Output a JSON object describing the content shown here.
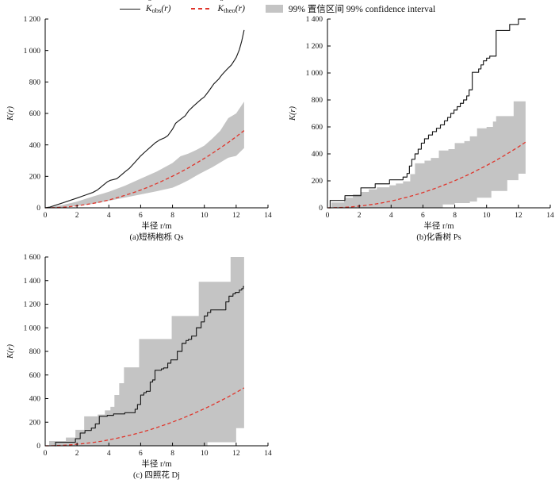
{
  "legend": {
    "k_symbol": "K",
    "hat": "ˆ",
    "obs_sub": "obs",
    "theo_sub": "theo",
    "arg": "(r)",
    "ci_label": "99% 置信区间 99% confidence interval"
  },
  "colors": {
    "obs": "#1a1a1a",
    "theo": "#e0352b",
    "band": "#c4c4c4",
    "axis": "#000000"
  },
  "chart_data": [
    {
      "id": "a",
      "type": "line",
      "caption": "(a)短柄枹栎 Qs",
      "xlabel": "半径 r/m",
      "ylabel": "K(r)",
      "xlim": [
        0,
        14
      ],
      "ylim": [
        0,
        1200
      ],
      "xticks": [
        "0",
        "2",
        "4",
        "6",
        "8",
        "10",
        "12",
        "14"
      ],
      "yticks": [
        "0",
        "200",
        "400",
        "600",
        "800",
        "1 000",
        "1 200"
      ],
      "grid": false,
      "legend_position": "top-outside",
      "obs_style": "line",
      "obs": [
        [
          0,
          0
        ],
        [
          0.3,
          5
        ],
        [
          0.6,
          15
        ],
        [
          1,
          28
        ],
        [
          1.5,
          45
        ],
        [
          2,
          62
        ],
        [
          2.5,
          80
        ],
        [
          3,
          98
        ],
        [
          3.3,
          115
        ],
        [
          3.6,
          140
        ],
        [
          3.9,
          165
        ],
        [
          4.1,
          175
        ],
        [
          4.5,
          185
        ],
        [
          4.8,
          210
        ],
        [
          5,
          228
        ],
        [
          5.3,
          252
        ],
        [
          5.6,
          285
        ],
        [
          6,
          330
        ],
        [
          6.3,
          358
        ],
        [
          6.6,
          385
        ],
        [
          6.9,
          412
        ],
        [
          7.2,
          432
        ],
        [
          7.5,
          445
        ],
        [
          7.7,
          458
        ],
        [
          8,
          500
        ],
        [
          8.2,
          538
        ],
        [
          8.5,
          562
        ],
        [
          8.8,
          585
        ],
        [
          9,
          615
        ],
        [
          9.3,
          645
        ],
        [
          9.6,
          672
        ],
        [
          9.8,
          690
        ],
        [
          10,
          705
        ],
        [
          10.3,
          745
        ],
        [
          10.6,
          788
        ],
        [
          10.9,
          818
        ],
        [
          11.1,
          845
        ],
        [
          11.4,
          878
        ],
        [
          11.7,
          908
        ],
        [
          12,
          955
        ],
        [
          12.2,
          1005
        ],
        [
          12.35,
          1060
        ],
        [
          12.5,
          1130
        ]
      ],
      "theo": [
        [
          0,
          0
        ],
        [
          0.5,
          1
        ],
        [
          1,
          3
        ],
        [
          1.5,
          7
        ],
        [
          2,
          13
        ],
        [
          2.5,
          20
        ],
        [
          3,
          28
        ],
        [
          3.5,
          38
        ],
        [
          4,
          50
        ],
        [
          4.5,
          64
        ],
        [
          5,
          79
        ],
        [
          5.5,
          95
        ],
        [
          6,
          113
        ],
        [
          6.5,
          133
        ],
        [
          7,
          154
        ],
        [
          7.5,
          177
        ],
        [
          8,
          201
        ],
        [
          8.5,
          227
        ],
        [
          9,
          254
        ],
        [
          9.5,
          284
        ],
        [
          10,
          314
        ],
        [
          10.5,
          346
        ],
        [
          11,
          380
        ],
        [
          11.5,
          415
        ],
        [
          12,
          452
        ],
        [
          12.5,
          491
        ]
      ],
      "band": {
        "style": "line",
        "r": [
          0.3,
          1,
          2,
          3,
          4,
          5,
          6,
          7,
          8,
          8.5,
          9,
          9.5,
          10,
          10.5,
          11,
          11.5,
          12,
          12.5
        ],
        "lower": [
          0,
          2,
          12,
          25,
          45,
          65,
          85,
          105,
          128,
          150,
          175,
          205,
          232,
          258,
          288,
          318,
          330,
          380
        ],
        "upper": [
          4,
          16,
          40,
          72,
          102,
          140,
          185,
          230,
          285,
          328,
          345,
          368,
          395,
          440,
          490,
          570,
          600,
          675
        ]
      }
    },
    {
      "id": "b",
      "type": "line",
      "caption": "(b)化香树 Ps",
      "xlabel": "半径 r/m",
      "ylabel": "K(r)",
      "xlim": [
        0,
        14
      ],
      "ylim": [
        0,
        1400
      ],
      "xticks": [
        "0",
        "2",
        "4",
        "6",
        "8",
        "10",
        "12",
        "14"
      ],
      "yticks": [
        "0",
        "200",
        "400",
        "600",
        "800",
        "1 000",
        "1 200",
        "1 400"
      ],
      "grid": false,
      "obs_style": "step",
      "obs": [
        [
          0.12,
          0
        ],
        [
          0.17,
          55
        ],
        [
          1.1,
          90
        ],
        [
          2.1,
          148
        ],
        [
          3.0,
          178
        ],
        [
          3.9,
          208
        ],
        [
          4.75,
          228
        ],
        [
          5.0,
          255
        ],
        [
          5.15,
          310
        ],
        [
          5.3,
          360
        ],
        [
          5.5,
          400
        ],
        [
          5.7,
          435
        ],
        [
          5.9,
          480
        ],
        [
          6.1,
          512
        ],
        [
          6.35,
          540
        ],
        [
          6.6,
          565
        ],
        [
          6.85,
          590
        ],
        [
          7.1,
          615
        ],
        [
          7.35,
          645
        ],
        [
          7.55,
          670
        ],
        [
          7.75,
          700
        ],
        [
          7.95,
          725
        ],
        [
          8.15,
          750
        ],
        [
          8.35,
          775
        ],
        [
          8.55,
          800
        ],
        [
          8.75,
          830
        ],
        [
          8.9,
          875
        ],
        [
          9.1,
          1005
        ],
        [
          9.5,
          1030
        ],
        [
          9.65,
          1060
        ],
        [
          9.8,
          1090
        ],
        [
          10.0,
          1110
        ],
        [
          10.2,
          1125
        ],
        [
          10.6,
          1315
        ],
        [
          11.45,
          1360
        ],
        [
          12.0,
          1400
        ],
        [
          12.45,
          1400
        ]
      ],
      "theo": [
        [
          0,
          0
        ],
        [
          0.5,
          1
        ],
        [
          1,
          3
        ],
        [
          1.5,
          7
        ],
        [
          2,
          13
        ],
        [
          2.5,
          20
        ],
        [
          3,
          28
        ],
        [
          3.5,
          38
        ],
        [
          4,
          50
        ],
        [
          4.5,
          64
        ],
        [
          5,
          79
        ],
        [
          5.5,
          95
        ],
        [
          6,
          113
        ],
        [
          6.5,
          133
        ],
        [
          7,
          154
        ],
        [
          7.5,
          177
        ],
        [
          8,
          201
        ],
        [
          8.5,
          227
        ],
        [
          9,
          254
        ],
        [
          9.5,
          284
        ],
        [
          10,
          314
        ],
        [
          10.5,
          346
        ],
        [
          11,
          380
        ],
        [
          11.5,
          415
        ],
        [
          12,
          452
        ],
        [
          12.5,
          491
        ]
      ],
      "band": {
        "style": "step",
        "r": [
          0.25,
          1.05,
          1.6,
          2.1,
          2.6,
          3.1,
          3.9,
          4.3,
          4.75,
          5.2,
          5.5,
          6.1,
          6.5,
          7.0,
          7.25,
          7.6,
          8.0,
          8.6,
          8.95,
          9.4,
          10.0,
          10.3,
          10.4,
          10.6,
          11.3,
          11.7,
          12.0,
          12.45
        ],
        "upper": [
          40,
          75,
          100,
          118,
          137,
          152,
          167,
          180,
          196,
          250,
          330,
          350,
          370,
          425,
          425,
          435,
          480,
          495,
          530,
          590,
          600,
          600,
          640,
          680,
          680,
          790,
          790,
          790
        ],
        "lower": [
          0,
          0,
          0,
          0,
          0,
          0,
          0,
          0,
          0,
          0,
          0,
          0,
          0,
          0,
          25,
          25,
          35,
          35,
          46,
          75,
          75,
          125,
          125,
          125,
          205,
          205,
          253,
          253
        ]
      }
    },
    {
      "id": "c",
      "type": "line",
      "caption": "(c) 四照花 Dj",
      "xlabel": "半径 r/m",
      "ylabel": "K(r)",
      "xlim": [
        0,
        14
      ],
      "ylim": [
        0,
        1600
      ],
      "xticks": [
        "0",
        "2",
        "4",
        "6",
        "8",
        "10",
        "12",
        "14"
      ],
      "yticks": [
        "0",
        "200",
        "400",
        "600",
        "800",
        "1 000",
        "1 200",
        "1 400",
        "1 600"
      ],
      "grid": false,
      "obs_style": "step",
      "obs": [
        [
          0.6,
          0
        ],
        [
          0.65,
          30
        ],
        [
          1.9,
          60
        ],
        [
          2.2,
          108
        ],
        [
          2.5,
          130
        ],
        [
          2.9,
          150
        ],
        [
          3.15,
          185
        ],
        [
          3.4,
          250
        ],
        [
          3.9,
          258
        ],
        [
          4.3,
          270
        ],
        [
          5.0,
          280
        ],
        [
          5.65,
          310
        ],
        [
          5.8,
          350
        ],
        [
          6.0,
          430
        ],
        [
          6.2,
          450
        ],
        [
          6.35,
          462
        ],
        [
          6.6,
          540
        ],
        [
          6.75,
          558
        ],
        [
          6.9,
          640
        ],
        [
          7.3,
          652
        ],
        [
          7.45,
          660
        ],
        [
          7.7,
          700
        ],
        [
          7.9,
          728
        ],
        [
          8.3,
          800
        ],
        [
          8.6,
          868
        ],
        [
          8.85,
          892
        ],
        [
          9.0,
          902
        ],
        [
          9.2,
          930
        ],
        [
          9.5,
          1000
        ],
        [
          9.8,
          1050
        ],
        [
          10.0,
          1100
        ],
        [
          10.2,
          1130
        ],
        [
          10.4,
          1152
        ],
        [
          11.35,
          1220
        ],
        [
          11.55,
          1268
        ],
        [
          11.8,
          1288
        ],
        [
          11.95,
          1300
        ],
        [
          12.2,
          1320
        ],
        [
          12.35,
          1332
        ],
        [
          12.45,
          1350
        ],
        [
          12.5,
          1350
        ]
      ],
      "theo": [
        [
          0,
          0
        ],
        [
          0.5,
          1
        ],
        [
          1,
          3
        ],
        [
          1.5,
          7
        ],
        [
          2,
          13
        ],
        [
          2.5,
          20
        ],
        [
          3,
          28
        ],
        [
          3.5,
          38
        ],
        [
          4,
          50
        ],
        [
          4.5,
          64
        ],
        [
          5,
          79
        ],
        [
          5.5,
          95
        ],
        [
          6,
          113
        ],
        [
          6.5,
          133
        ],
        [
          7,
          154
        ],
        [
          7.5,
          177
        ],
        [
          8,
          201
        ],
        [
          8.5,
          227
        ],
        [
          9,
          254
        ],
        [
          9.5,
          284
        ],
        [
          10,
          314
        ],
        [
          10.5,
          346
        ],
        [
          11,
          380
        ],
        [
          11.5,
          415
        ],
        [
          12,
          452
        ],
        [
          12.5,
          491
        ]
      ],
      "band": {
        "style": "step",
        "r": [
          0.25,
          1.3,
          1.9,
          2.45,
          3.3,
          3.75,
          4.1,
          4.35,
          4.65,
          4.95,
          5.9,
          7.95,
          9.65,
          10.2,
          11.65,
          12.0,
          12.5
        ],
        "upper": [
          40,
          70,
          135,
          250,
          265,
          300,
          330,
          430,
          530,
          665,
          905,
          1100,
          1390,
          1390,
          1600,
          1600,
          1600
        ],
        "lower": [
          0,
          0,
          0,
          0,
          0,
          0,
          0,
          0,
          0,
          0,
          0,
          0,
          0,
          30,
          30,
          150,
          150
        ]
      }
    }
  ]
}
